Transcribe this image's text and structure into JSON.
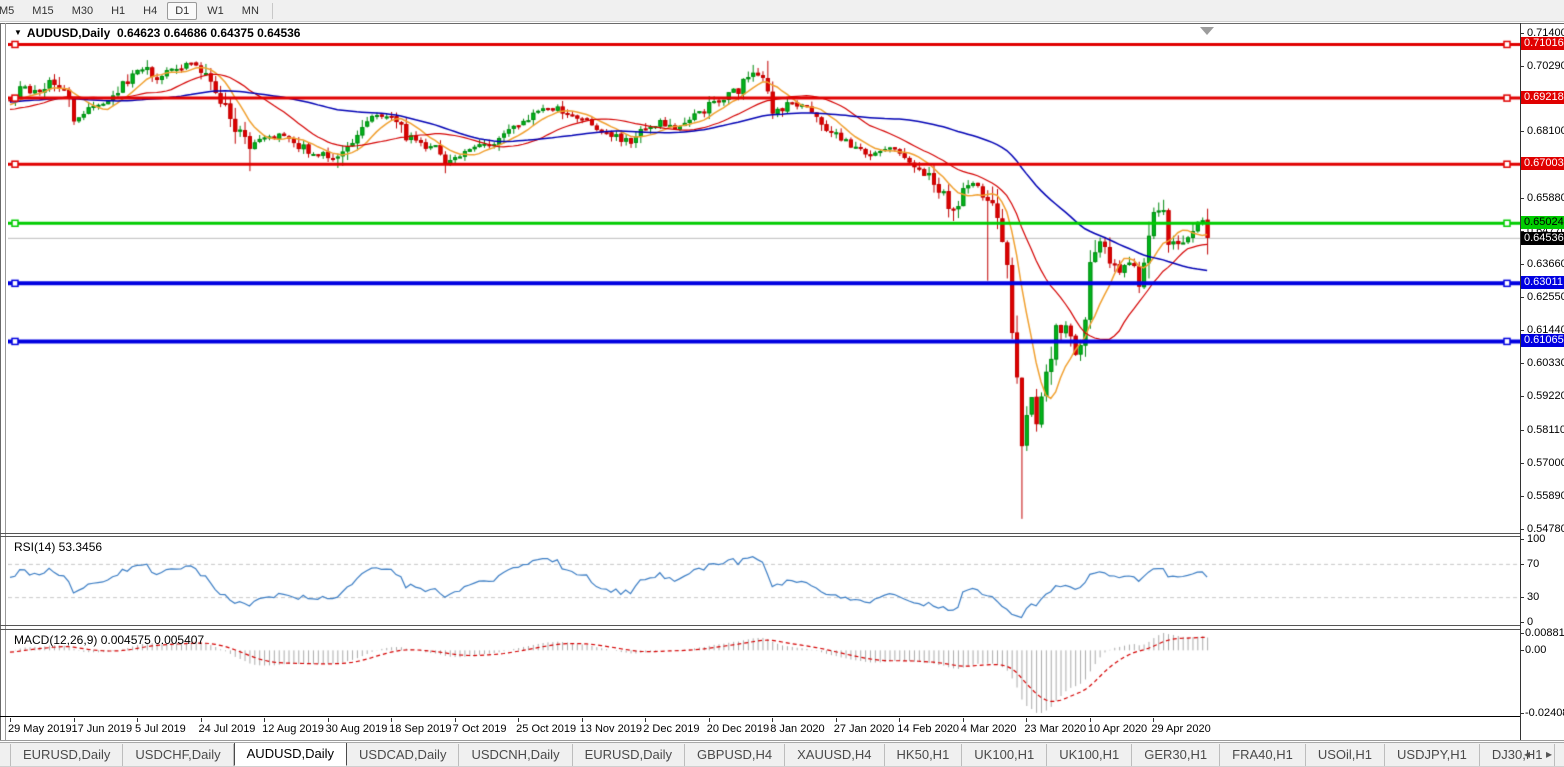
{
  "toolbar": {
    "timeframes": [
      "M5",
      "M15",
      "M30",
      "H1",
      "H4",
      "D1",
      "W1",
      "MN"
    ],
    "active_timeframe": "D1"
  },
  "window": {
    "symbol_title": "AUDUSD,Daily",
    "ohlc_text": "0.64623 0.64686 0.64375 0.64536",
    "open": "0.64623",
    "high": "0.64686",
    "low": "0.64375",
    "close": "0.64536",
    "dropdown_icon": "▼"
  },
  "price_axis": {
    "max": 0.714,
    "min": 0.5478,
    "ticks": [
      "0.71400",
      "0.70290",
      "0.68100",
      "0.65880",
      "0.64770",
      "0.63660",
      "0.62550",
      "0.61440",
      "0.60330",
      "0.59220",
      "0.58110",
      "0.57000",
      "0.55890",
      "0.54780"
    ]
  },
  "levels": [
    {
      "value": 0.71016,
      "label": "0.71016",
      "color": "#e00000",
      "text_color": "#ffffff",
      "thickness": 3
    },
    {
      "value": 0.69218,
      "label": "0.69218",
      "color": "#e00000",
      "text_color": "#ffffff",
      "thickness": 3
    },
    {
      "value": 0.67003,
      "label": "0.67003",
      "color": "#e00000",
      "text_color": "#ffffff",
      "thickness": 3
    },
    {
      "value": 0.65024,
      "label": "0.65024",
      "color": "#00cc00",
      "text_color": "#000000",
      "thickness": 3
    },
    {
      "value": 0.63011,
      "label": "0.63011",
      "color": "#0000e0",
      "text_color": "#ffffff",
      "thickness": 4
    },
    {
      "value": 0.61065,
      "label": "0.61065",
      "color": "#0000e0",
      "text_color": "#ffffff",
      "thickness": 4
    }
  ],
  "current_price": {
    "value": 0.64536,
    "label": "0.64536",
    "bg": "#000000",
    "fg": "#ffffff",
    "line_color": "#bcbcbc"
  },
  "chart_data": {
    "type": "candlestick",
    "symbol": "AUDUSD",
    "period": "Daily",
    "date_range": [
      "29 May 2019",
      "8 May 2020"
    ],
    "price_range": [
      0.5478,
      0.714
    ],
    "candle_count": 246,
    "up_color": "#00b81c",
    "up_border": "#008a12",
    "down_color": "#e00000",
    "down_border": "#c00000",
    "close_waypoints": [
      [
        0,
        0.692
      ],
      [
        3,
        0.6958
      ],
      [
        6,
        0.6935
      ],
      [
        8,
        0.6992
      ],
      [
        10,
        0.6962
      ],
      [
        13,
        0.6858
      ],
      [
        16,
        0.6882
      ],
      [
        20,
        0.6928
      ],
      [
        24,
        0.6978
      ],
      [
        26,
        0.7018
      ],
      [
        28,
        0.7036
      ],
      [
        30,
        0.6992
      ],
      [
        33,
        0.7012
      ],
      [
        36,
        0.7038
      ],
      [
        39,
        0.7025
      ],
      [
        41,
        0.6972
      ],
      [
        44,
        0.6902
      ],
      [
        47,
        0.68
      ],
      [
        49,
        0.6762
      ],
      [
        52,
        0.6788
      ],
      [
        55,
        0.6795
      ],
      [
        58,
        0.6778
      ],
      [
        61,
        0.6738
      ],
      [
        64,
        0.6732
      ],
      [
        67,
        0.6718
      ],
      [
        70,
        0.6792
      ],
      [
        74,
        0.6862
      ],
      [
        78,
        0.6852
      ],
      [
        81,
        0.6792
      ],
      [
        84,
        0.6772
      ],
      [
        87,
        0.6748
      ],
      [
        89,
        0.6702
      ],
      [
        91,
        0.6722
      ],
      [
        94,
        0.6742
      ],
      [
        97,
        0.6762
      ],
      [
        100,
        0.6788
      ],
      [
        103,
        0.6828
      ],
      [
        106,
        0.6852
      ],
      [
        109,
        0.6882
      ],
      [
        112,
        0.6895
      ],
      [
        115,
        0.6862
      ],
      [
        118,
        0.6842
      ],
      [
        121,
        0.6812
      ],
      [
        124,
        0.6792
      ],
      [
        127,
        0.6772
      ],
      [
        130,
        0.6822
      ],
      [
        133,
        0.6845
      ],
      [
        136,
        0.6812
      ],
      [
        139,
        0.6842
      ],
      [
        141,
        0.6872
      ],
      [
        143,
        0.69
      ],
      [
        146,
        0.6925
      ],
      [
        149,
        0.6948
      ],
      [
        152,
        0.7012
      ],
      [
        154,
        0.6998
      ],
      [
        156,
        0.6872
      ],
      [
        159,
        0.6902
      ],
      [
        162,
        0.6892
      ],
      [
        165,
        0.6855
      ],
      [
        168,
        0.6812
      ],
      [
        171,
        0.6772
      ],
      [
        174,
        0.6748
      ],
      [
        177,
        0.6732
      ],
      [
        180,
        0.6748
      ],
      [
        182,
        0.6722
      ],
      [
        185,
        0.6692
      ],
      [
        188,
        0.6662
      ],
      [
        191,
        0.6602
      ],
      [
        193,
        0.6548
      ],
      [
        195,
        0.6622
      ],
      [
        197,
        0.6642
      ],
      [
        199,
        0.6612
      ],
      [
        200,
        0.6582
      ],
      [
        202,
        0.6502
      ],
      [
        204,
        0.6332
      ],
      [
        205,
        0.6122
      ],
      [
        206,
        0.5992
      ],
      [
        207,
        0.5782
      ],
      [
        208,
        0.5822
      ],
      [
        209,
        0.5922
      ],
      [
        210,
        0.5812
      ],
      [
        212,
        0.5962
      ],
      [
        214,
        0.6132
      ],
      [
        216,
        0.6172
      ],
      [
        218,
        0.6062
      ],
      [
        220,
        0.6142
      ],
      [
        221,
        0.6352
      ],
      [
        223,
        0.6432
      ],
      [
        225,
        0.6392
      ],
      [
        227,
        0.6332
      ],
      [
        229,
        0.6362
      ],
      [
        231,
        0.6292
      ],
      [
        233,
        0.6422
      ],
      [
        234,
        0.6552
      ],
      [
        236,
        0.6522
      ],
      [
        238,
        0.6422
      ],
      [
        240,
        0.6445
      ],
      [
        242,
        0.6482
      ],
      [
        244,
        0.6512
      ],
      [
        245,
        0.64536
      ]
    ],
    "special_wicks": [
      [
        13,
        "low",
        0.6832
      ],
      [
        28,
        "high",
        0.7049
      ],
      [
        49,
        "low",
        0.6677
      ],
      [
        67,
        "low",
        0.6688
      ],
      [
        89,
        "low",
        0.667
      ],
      [
        152,
        "high",
        0.7033
      ],
      [
        193,
        "low",
        0.651
      ],
      [
        200,
        "low",
        0.631
      ],
      [
        207,
        "low",
        0.5512
      ],
      [
        235,
        "high",
        0.6572
      ]
    ],
    "moving_averages": [
      {
        "name": "fast-ma",
        "period": 8,
        "color": "#f0a030"
      },
      {
        "name": "mid-ma",
        "period": 21,
        "color": "#d40000"
      },
      {
        "name": "slow-ma",
        "period": 55,
        "color": "#0000b4"
      }
    ]
  },
  "rsi": {
    "label": "RSI(14) 53.3456",
    "indicator": "RSI",
    "period": 14,
    "value": 53.3456,
    "axis_ticks": [
      "100",
      "70",
      "30",
      "0"
    ],
    "upper_level": 70,
    "lower_level": 30,
    "line_color": "#3b7dc4",
    "level_line_color": "#c8c8c8"
  },
  "macd": {
    "label": "MACD(12,26,9) 0.004575 0.005407",
    "indicator": "MACD",
    "fast": 12,
    "slow": 26,
    "signal": 9,
    "value_main": 0.004575,
    "value_signal": 0.005407,
    "axis_top": "0.008815",
    "axis_zero": "0.00",
    "axis_bottom": "-0.024082",
    "histogram_color": "#ababab",
    "signal_color": "#d40000"
  },
  "date_axis": [
    "29 May 2019",
    "17 Jun 2019",
    "5 Jul 2019",
    "24 Jul 2019",
    "12 Aug 2019",
    "30 Aug 2019",
    "18 Sep 2019",
    "7 Oct 2019",
    "25 Oct 2019",
    "13 Nov 2019",
    "2 Dec 2019",
    "20 Dec 2019",
    "8 Jan 2020",
    "27 Jan 2020",
    "14 Feb 2020",
    "4 Mar 2020",
    "23 Mar 2020",
    "10 Apr 2020",
    "29 Apr 2020"
  ],
  "tabs": {
    "items": [
      "EURUSD,Daily",
      "USDCHF,Daily",
      "AUDUSD,Daily",
      "USDCAD,Daily",
      "USDCNH,Daily",
      "EURUSD,Daily",
      "GBPUSD,H4",
      "XAUUSD,H4",
      "HK50,H1",
      "UK100,H1",
      "UK100,H1",
      "GER30,H1",
      "FRA40,H1",
      "USOil,H1",
      "USDJPY,H1",
      "DJ30,H1"
    ],
    "active_index": 2,
    "scroll_left_icon": "◂",
    "scroll_right_icon": "▸"
  }
}
